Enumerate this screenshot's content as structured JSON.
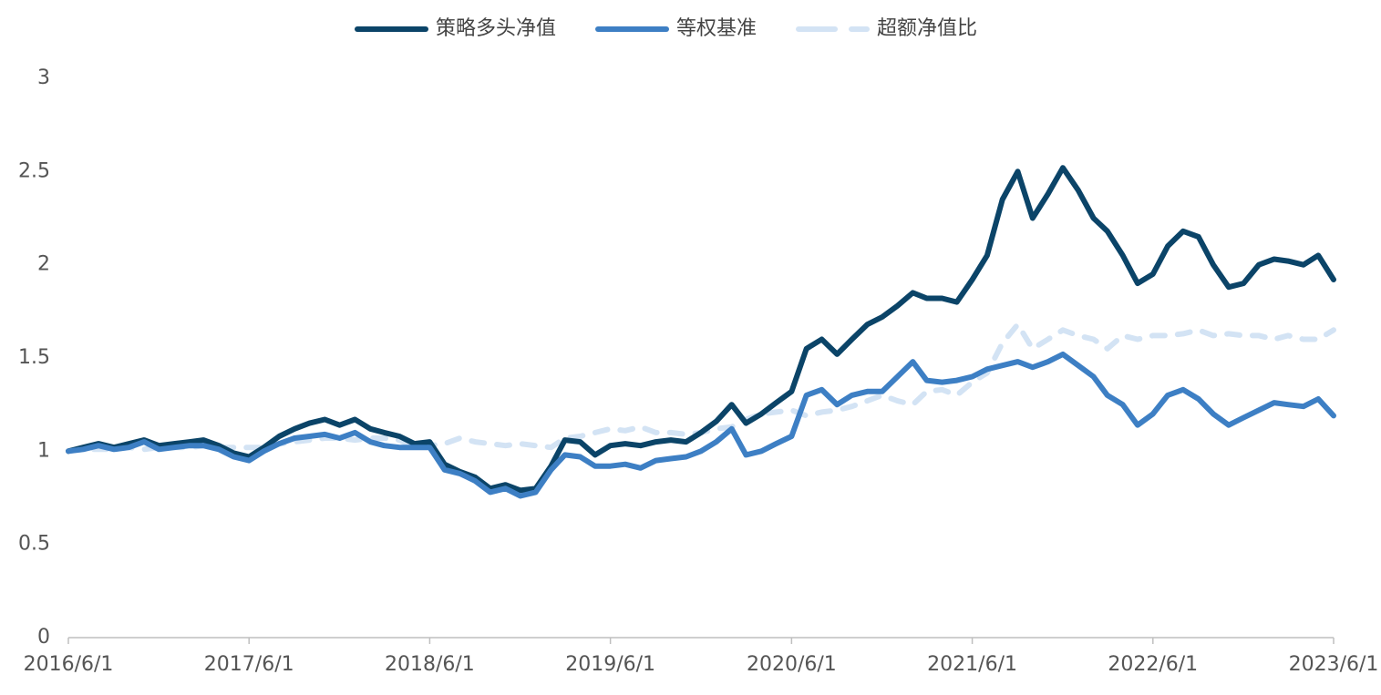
{
  "chart_data": {
    "type": "line",
    "x": [
      "2016/6/1",
      "2016/7/1",
      "2016/8/1",
      "2016/9/1",
      "2016/10/1",
      "2016/11/1",
      "2016/12/1",
      "2017/1/1",
      "2017/2/1",
      "2017/3/1",
      "2017/4/1",
      "2017/5/1",
      "2017/6/1",
      "2017/7/1",
      "2017/8/1",
      "2017/9/1",
      "2017/10/1",
      "2017/11/1",
      "2017/12/1",
      "2018/1/1",
      "2018/2/1",
      "2018/3/1",
      "2018/4/1",
      "2018/5/1",
      "2018/6/1",
      "2018/7/1",
      "2018/8/1",
      "2018/9/1",
      "2018/10/1",
      "2018/11/1",
      "2018/12/1",
      "2019/1/1",
      "2019/2/1",
      "2019/3/1",
      "2019/4/1",
      "2019/5/1",
      "2019/6/1",
      "2019/7/1",
      "2019/8/1",
      "2019/9/1",
      "2019/10/1",
      "2019/11/1",
      "2019/12/1",
      "2020/1/1",
      "2020/2/1",
      "2020/3/1",
      "2020/4/1",
      "2020/5/1",
      "2020/6/1",
      "2020/7/1",
      "2020/8/1",
      "2020/9/1",
      "2020/10/1",
      "2020/11/1",
      "2020/12/1",
      "2021/1/1",
      "2021/2/1",
      "2021/3/1",
      "2021/4/1",
      "2021/5/1",
      "2021/6/1",
      "2021/7/1",
      "2021/8/1",
      "2021/9/1",
      "2021/10/1",
      "2021/11/1",
      "2021/12/1",
      "2022/1/1",
      "2022/2/1",
      "2022/3/1",
      "2022/4/1",
      "2022/5/1",
      "2022/6/1",
      "2022/7/1",
      "2022/8/1",
      "2022/9/1",
      "2022/10/1",
      "2022/11/1",
      "2022/12/1",
      "2023/1/1",
      "2023/2/1",
      "2023/3/1",
      "2023/4/1",
      "2023/5/1",
      "2023/6/1"
    ],
    "series": [
      {
        "name": "策略多头净值",
        "color": "#0b4468",
        "style": "solid",
        "values": [
          1.0,
          1.02,
          1.04,
          1.02,
          1.04,
          1.06,
          1.03,
          1.04,
          1.05,
          1.06,
          1.03,
          0.99,
          0.97,
          1.02,
          1.08,
          1.12,
          1.15,
          1.17,
          1.14,
          1.17,
          1.12,
          1.1,
          1.08,
          1.04,
          1.05,
          0.93,
          0.89,
          0.86,
          0.8,
          0.82,
          0.79,
          0.8,
          0.92,
          1.06,
          1.05,
          0.98,
          1.03,
          1.04,
          1.03,
          1.05,
          1.06,
          1.05,
          1.1,
          1.16,
          1.25,
          1.15,
          1.2,
          1.26,
          1.32,
          1.55,
          1.6,
          1.52,
          1.6,
          1.68,
          1.72,
          1.78,
          1.85,
          1.82,
          1.82,
          1.8,
          1.92,
          2.05,
          2.35,
          2.5,
          2.25,
          2.38,
          2.52,
          2.4,
          2.25,
          2.18,
          2.05,
          1.9,
          1.95,
          2.1,
          2.18,
          2.15,
          2.0,
          1.88,
          1.9,
          2.0,
          2.03,
          2.02,
          2.0,
          2.05,
          1.92
        ]
      },
      {
        "name": "等权基准",
        "color": "#3d7fc4",
        "style": "solid",
        "values": [
          1.0,
          1.01,
          1.03,
          1.01,
          1.02,
          1.05,
          1.01,
          1.02,
          1.03,
          1.03,
          1.01,
          0.97,
          0.95,
          1.0,
          1.04,
          1.07,
          1.08,
          1.09,
          1.07,
          1.1,
          1.05,
          1.03,
          1.02,
          1.02,
          1.02,
          0.9,
          0.88,
          0.84,
          0.78,
          0.8,
          0.76,
          0.78,
          0.9,
          0.98,
          0.97,
          0.92,
          0.92,
          0.93,
          0.91,
          0.95,
          0.96,
          0.97,
          1.0,
          1.05,
          1.12,
          0.98,
          1.0,
          1.04,
          1.08,
          1.3,
          1.33,
          1.25,
          1.3,
          1.32,
          1.32,
          1.4,
          1.48,
          1.38,
          1.37,
          1.38,
          1.4,
          1.44,
          1.46,
          1.48,
          1.45,
          1.48,
          1.52,
          1.46,
          1.4,
          1.3,
          1.25,
          1.14,
          1.2,
          1.3,
          1.33,
          1.28,
          1.2,
          1.14,
          1.18,
          1.22,
          1.26,
          1.25,
          1.24,
          1.28,
          1.19
        ]
      },
      {
        "name": "超额净值比",
        "color": "#d3e3f4",
        "style": "dashed",
        "values": [
          1.0,
          1.01,
          1.01,
          1.01,
          1.02,
          1.01,
          1.02,
          1.02,
          1.02,
          1.03,
          1.02,
          1.02,
          1.02,
          1.02,
          1.04,
          1.05,
          1.06,
          1.07,
          1.07,
          1.06,
          1.07,
          1.07,
          1.06,
          1.02,
          1.03,
          1.04,
          1.07,
          1.05,
          1.04,
          1.03,
          1.04,
          1.03,
          1.02,
          1.07,
          1.08,
          1.1,
          1.12,
          1.11,
          1.13,
          1.1,
          1.1,
          1.09,
          1.1,
          1.12,
          1.13,
          1.17,
          1.2,
          1.21,
          1.22,
          1.19,
          1.21,
          1.22,
          1.24,
          1.27,
          1.3,
          1.27,
          1.25,
          1.32,
          1.33,
          1.3,
          1.37,
          1.42,
          1.58,
          1.68,
          1.55,
          1.6,
          1.65,
          1.62,
          1.6,
          1.55,
          1.62,
          1.6,
          1.62,
          1.62,
          1.63,
          1.65,
          1.62,
          1.63,
          1.62,
          1.62,
          1.6,
          1.62,
          1.6,
          1.6,
          1.65
        ]
      }
    ],
    "xlim": [
      "2016/6/1",
      "2023/6/1"
    ],
    "xticks": [
      "2016/6/1",
      "2017/6/1",
      "2018/6/1",
      "2019/6/1",
      "2020/6/1",
      "2021/6/1",
      "2022/6/1",
      "2023/6/1"
    ],
    "ylim": [
      0,
      3
    ],
    "yticks": [
      0,
      0.5,
      1,
      1.5,
      2,
      2.5,
      3
    ],
    "grid": false,
    "legend": "top"
  }
}
